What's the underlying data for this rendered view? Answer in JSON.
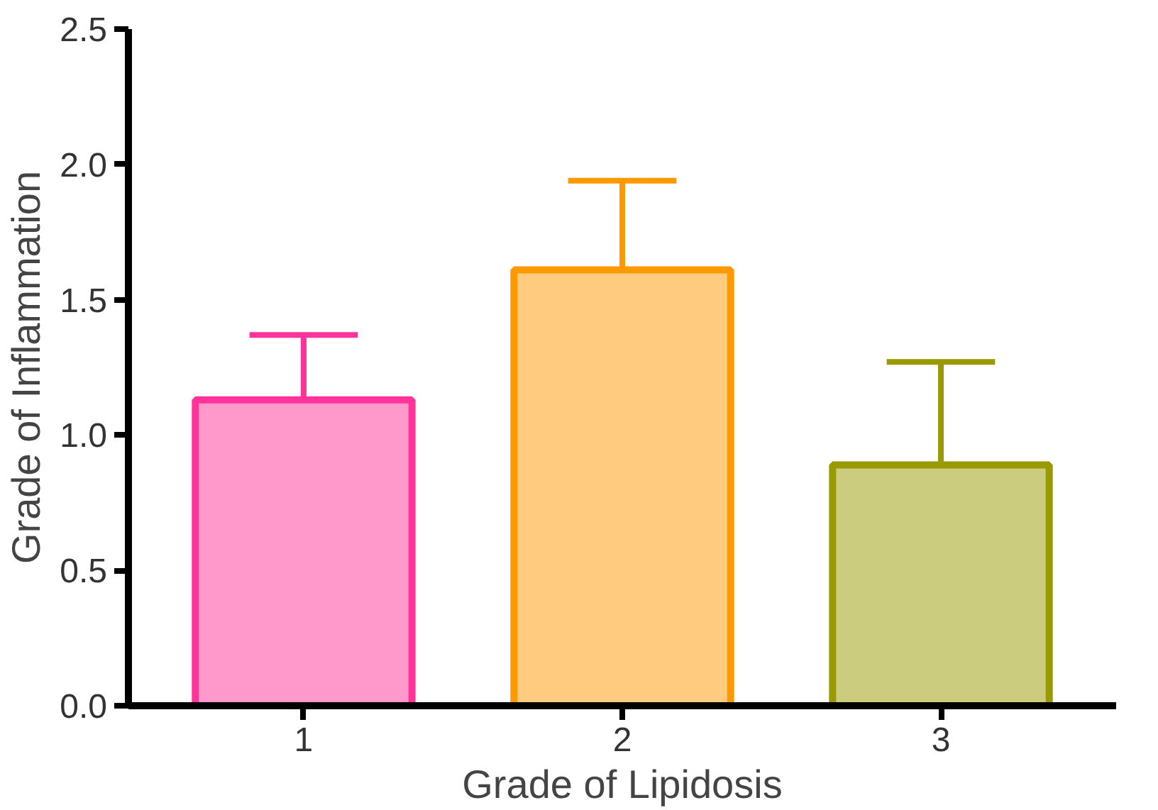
{
  "chart_data": {
    "type": "bar",
    "xlabel": "Grade of Lipidosis",
    "ylabel": "Grade of Inflammation",
    "categories": [
      "1",
      "2",
      "3"
    ],
    "values": [
      1.13,
      1.61,
      0.89
    ],
    "errors": [
      [
        1.13,
        1.37
      ],
      [
        1.61,
        1.94
      ],
      [
        0.89,
        1.27
      ]
    ],
    "colors": [
      "#ff3399",
      "#ff9900",
      "#999900"
    ],
    "ylim": [
      0,
      2.5
    ],
    "yticks": [
      {
        "value": 0,
        "label": "0.0"
      },
      {
        "value": 0.5,
        "label": "0.5"
      },
      {
        "value": 1,
        "label": "1.0"
      },
      {
        "value": 1.5,
        "label": "1.5"
      },
      {
        "value": 2,
        "label": "2.0"
      },
      {
        "value": 2.5,
        "label": "2.5"
      }
    ],
    "grid": false
  }
}
